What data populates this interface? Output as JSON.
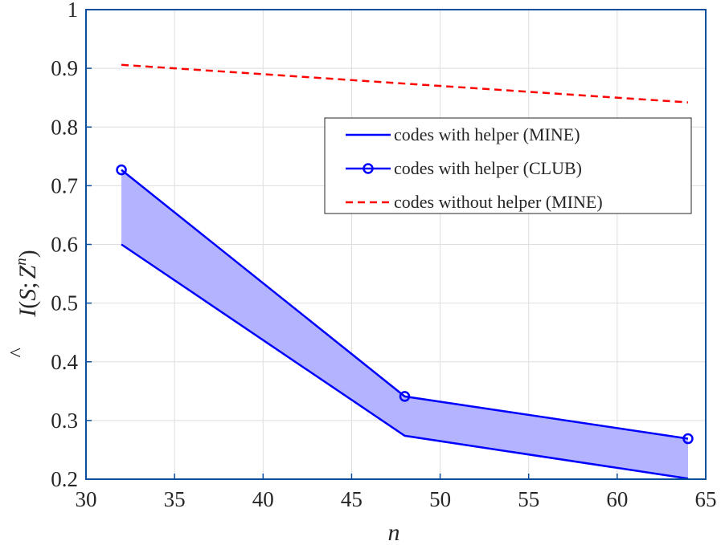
{
  "chart_data": {
    "type": "line",
    "title": "",
    "xlabel": "n",
    "ylabel": {
      "hat": "^",
      "I": "I",
      "open": "(",
      "S": "S",
      "sep": ";",
      "Z": "Z",
      "sup": "n",
      "close": ")"
    },
    "xlim": [
      30,
      65
    ],
    "ylim": [
      0.2,
      1
    ],
    "x_ticks": [
      "30",
      "35",
      "40",
      "45",
      "50",
      "55",
      "60",
      "65"
    ],
    "y_ticks": [
      "0.2",
      "0.3",
      "0.4",
      "0.5",
      "0.6",
      "0.7",
      "0.8",
      "0.9",
      "1"
    ],
    "x_tick_values": [
      30,
      35,
      40,
      45,
      50,
      55,
      60,
      65
    ],
    "y_tick_values": [
      0.2,
      0.3,
      0.4,
      0.5,
      0.6,
      0.7,
      0.8,
      0.9,
      1.0
    ],
    "grid": true,
    "legend_position": "center-right",
    "series": [
      {
        "name": "codes with helper (MINE)",
        "x": [
          32,
          48,
          64
        ],
        "y": [
          0.6,
          0.274,
          0.201
        ],
        "color": "#0000ff",
        "style": "solid",
        "marker": "none"
      },
      {
        "name": "codes with helper (CLUB)",
        "x": [
          32,
          48,
          64
        ],
        "y": [
          0.727,
          0.341,
          0.269
        ],
        "color": "#0000ff",
        "style": "solid",
        "marker": "circle"
      },
      {
        "name": "codes without helper (MINE)",
        "x": [
          32,
          64
        ],
        "y": [
          0.906,
          0.842
        ],
        "color": "#ff0000",
        "style": "dashed",
        "marker": "none"
      }
    ],
    "fill_between": {
      "lower_series": 0,
      "upper_series": 1,
      "color": "#b3b3ff"
    },
    "colors": {
      "axes": "#0b4f9c",
      "grid": "#dedede",
      "text": "#262626"
    }
  }
}
